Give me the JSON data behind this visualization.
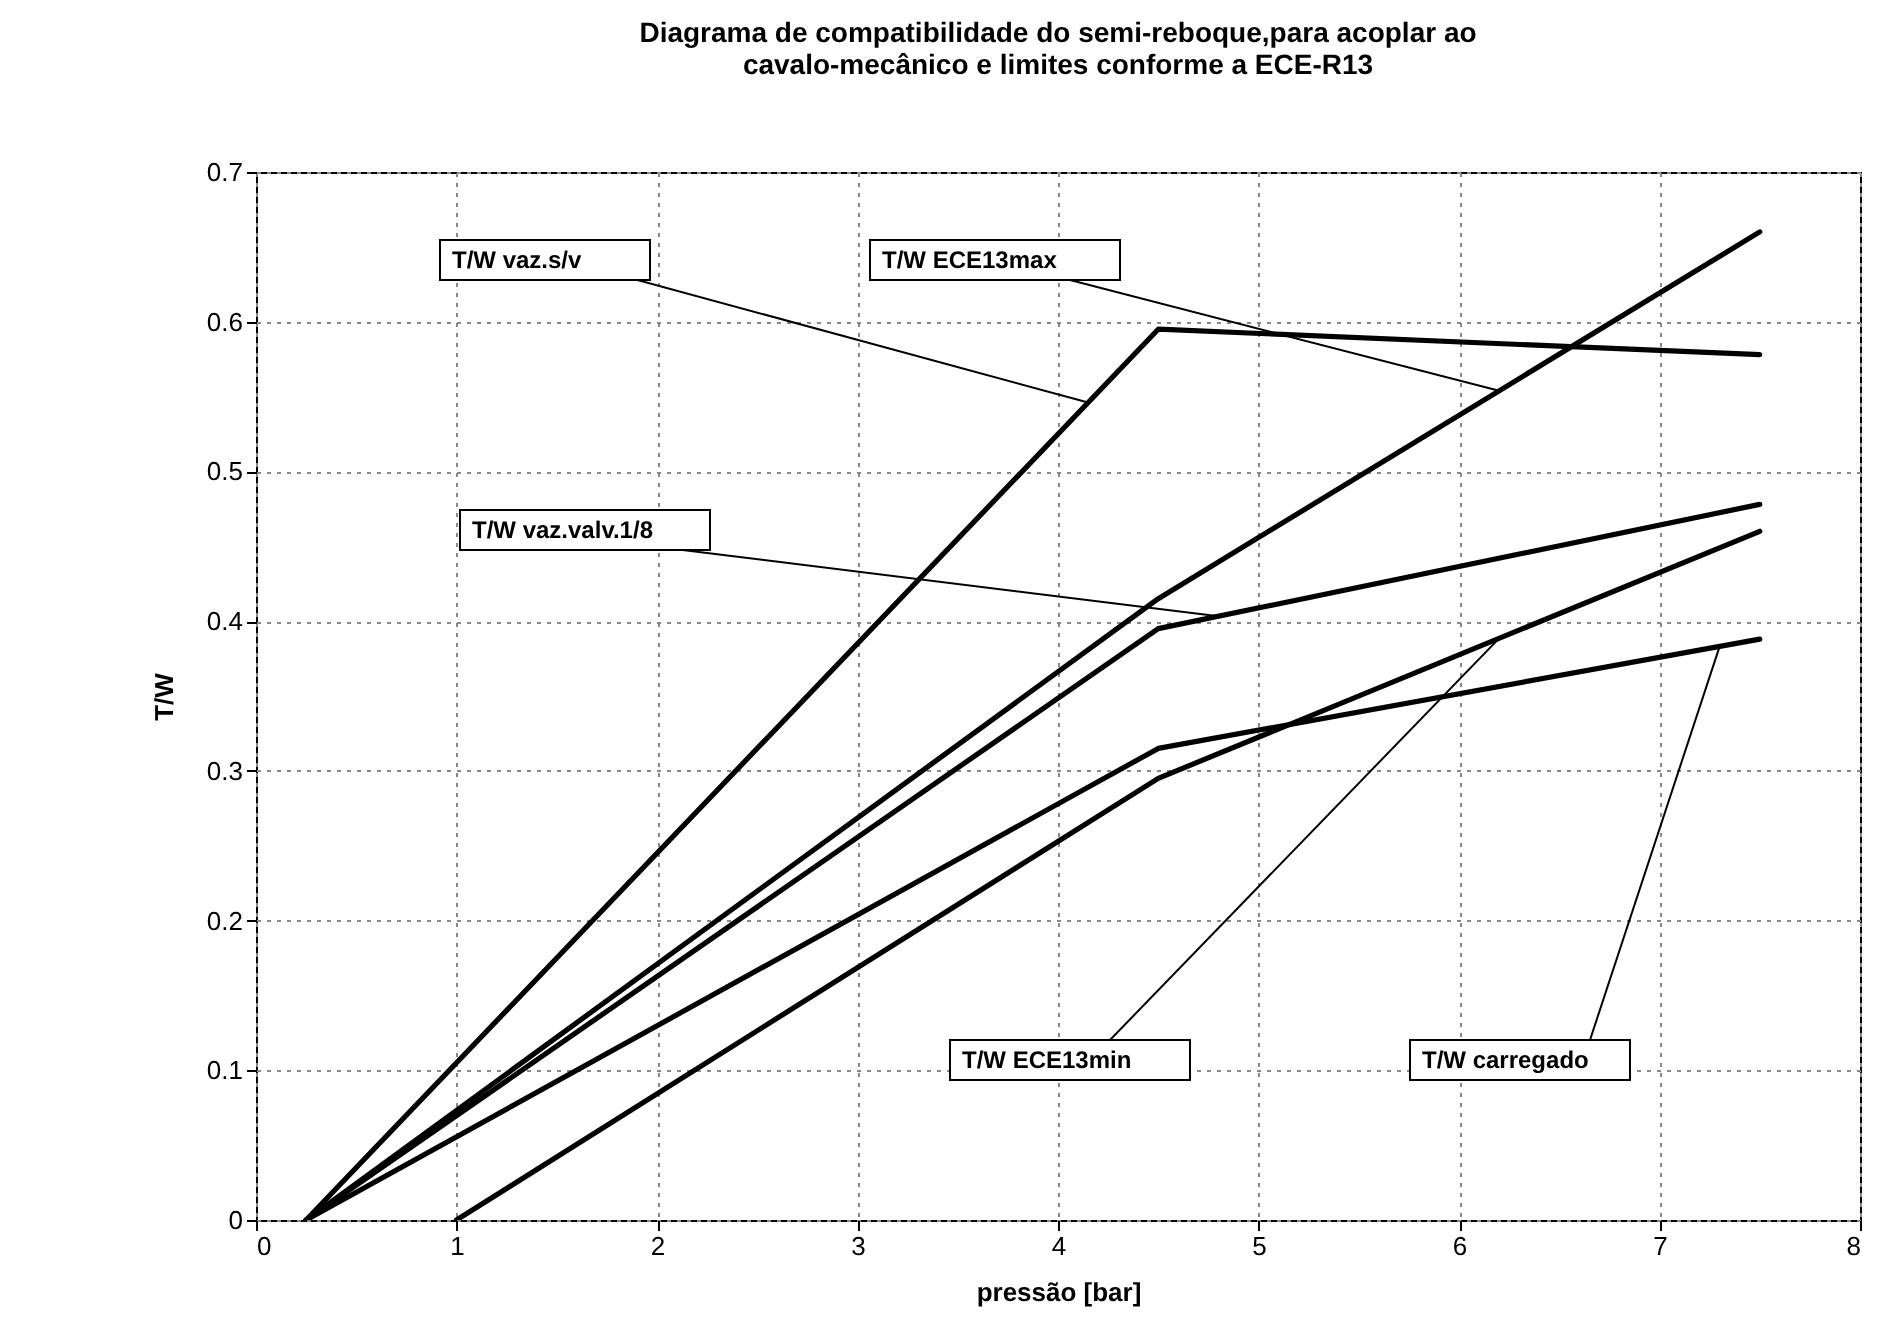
{
  "chart_data": {
    "type": "line",
    "title": "Diagrama de compatibilidade do semi-reboque,para acoplar ao cavalo-mecânico e limites conforme a ECE-R13",
    "xlabel": "pressão [bar]",
    "ylabel": "T/W",
    "xlim": [
      0,
      8
    ],
    "xticks": [
      0,
      1,
      2,
      3,
      4,
      5,
      6,
      7,
      8
    ],
    "ylim": [
      0,
      0.7
    ],
    "yticks": [
      0,
      0.1,
      0.2,
      0.3,
      0.4,
      0.5,
      0.6,
      0.7
    ],
    "grid": true,
    "legend": false,
    "marker": "none",
    "line_style": "solid",
    "series": [
      {
        "name": "T/W vaz.s/v",
        "color": "#000000",
        "x": [
          0.25,
          4.5,
          7.5
        ],
        "values": [
          0,
          0.595,
          0.578
        ]
      },
      {
        "name": "T/W ECE13max",
        "color": "#000000",
        "x": [
          0.25,
          4.5,
          7.5
        ],
        "values": [
          0,
          0.415,
          0.66
        ]
      },
      {
        "name": "T/W vaz.valv.1/8",
        "color": "#000000",
        "x": [
          0.25,
          4.5,
          7.5
        ],
        "values": [
          0,
          0.395,
          0.478
        ]
      },
      {
        "name": "T/W ECE13min",
        "color": "#000000",
        "x": [
          1,
          4.5,
          7.5
        ],
        "values": [
          0,
          0.295,
          0.46
        ]
      },
      {
        "name": "T/W carregado",
        "color": "#000000",
        "x": [
          0.25,
          4.5,
          7.5
        ],
        "values": [
          0,
          0.315,
          0.388
        ]
      }
    ]
  }
}
